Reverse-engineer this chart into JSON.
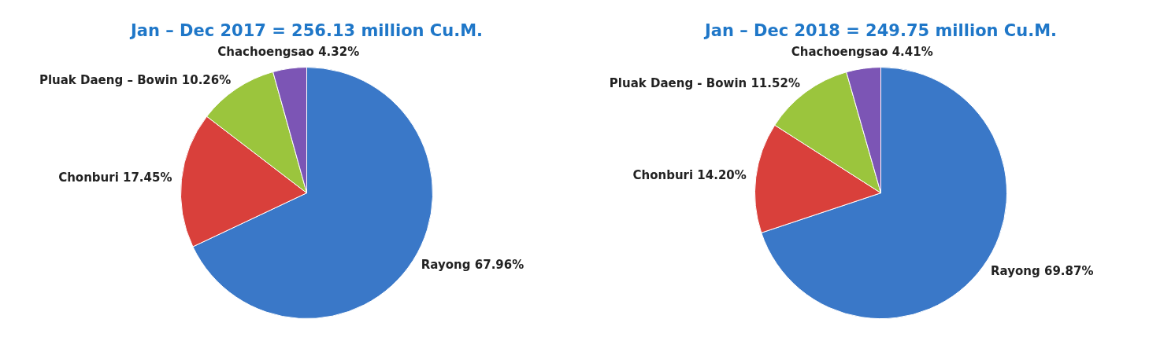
{
  "chart_data": [
    {
      "type": "pie",
      "title": "Jan – Dec 2017 = 256.13 million Cu.M.",
      "categories": [
        "Rayong",
        "Chonburi",
        "Pluak Daeng – Bowin",
        "Chachoengsao"
      ],
      "values": [
        67.96,
        17.45,
        10.26,
        4.32
      ],
      "value_labels": [
        "67.96%",
        "17.45%",
        "10.26%",
        "4.32%"
      ],
      "colors": [
        "#3a78c8",
        "#d9403b",
        "#9bc53d",
        "#7c55b5"
      ]
    },
    {
      "type": "pie",
      "title": "Jan – Dec 2018 = 249.75 million Cu.M.",
      "categories": [
        "Rayong",
        "Chonburi",
        "Pluak Daeng - Bowin",
        "Chachoengsao"
      ],
      "values": [
        69.87,
        14.2,
        11.52,
        4.41
      ],
      "value_labels": [
        "69.87%",
        "14.20%",
        "11.52%",
        "4.41%"
      ],
      "colors": [
        "#3a78c8",
        "#d9403b",
        "#9bc53d",
        "#7c55b5"
      ]
    }
  ]
}
